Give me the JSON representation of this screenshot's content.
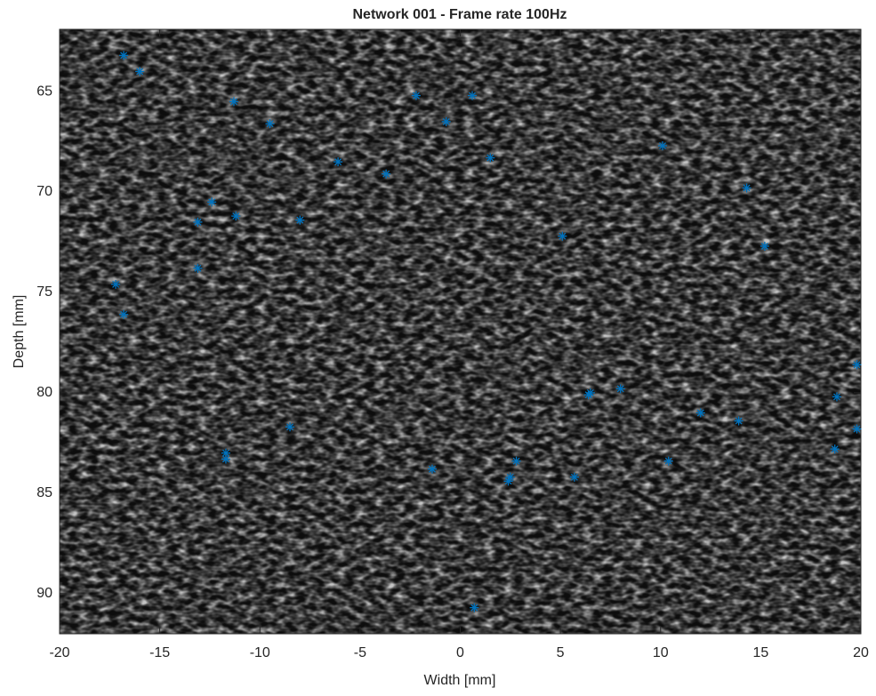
{
  "chart_data": {
    "type": "scatter",
    "title": "Network 001 - Frame rate 100Hz",
    "xlabel": "Width [mm]",
    "ylabel": "Depth [mm]",
    "x": [
      -16.8,
      -16.0,
      -11.3,
      -9.5,
      -2.2,
      0.6,
      -0.7,
      -6.1,
      -3.7,
      1.5,
      10.1,
      14.3,
      -12.4,
      -11.2,
      -13.1,
      -8.0,
      5.1,
      15.2,
      -13.1,
      -17.2,
      -16.8,
      19.8,
      18.8,
      6.5,
      6.4,
      8.0,
      12.0,
      13.9,
      19.8,
      18.7,
      -8.5,
      -11.7,
      -11.7,
      -1.4,
      2.8,
      2.5,
      2.4,
      5.7,
      10.4,
      0.7
    ],
    "values": [
      63.2,
      64.0,
      65.5,
      66.6,
      65.2,
      65.2,
      66.5,
      68.5,
      69.1,
      68.3,
      67.7,
      69.8,
      70.5,
      71.2,
      71.5,
      71.4,
      72.2,
      72.7,
      73.8,
      74.6,
      76.1,
      78.6,
      80.2,
      80.0,
      80.1,
      79.8,
      81.0,
      81.4,
      81.8,
      82.8,
      81.7,
      83.0,
      83.3,
      83.8,
      83.4,
      84.2,
      84.4,
      84.2,
      83.4,
      90.7
    ],
    "color": "#0072bd",
    "xlim": [
      -20,
      20
    ],
    "xticks": [
      -20,
      -15,
      -10,
      -5,
      0,
      5,
      10,
      15,
      20
    ],
    "ylim": [
      61.9,
      92.0
    ],
    "yticks": [
      65,
      70,
      75,
      80,
      85,
      90
    ],
    "y_reversed": true
  }
}
